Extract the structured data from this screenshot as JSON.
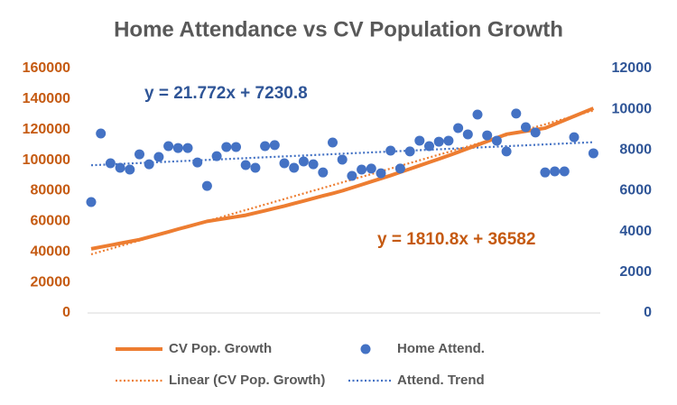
{
  "chart_data": {
    "type": "combo",
    "title": "Home Attendance vs CV Population Growth",
    "series": [
      {
        "name": "CV Pop. Growth",
        "type": "line",
        "color": "#ed7d31",
        "values": [
          42000,
          43200,
          44400,
          45600,
          46800,
          48000,
          49700,
          51400,
          53100,
          54900,
          56600,
          58300,
          60000,
          61000,
          62000,
          63000,
          64000,
          65500,
          67000,
          68500,
          70000,
          71700,
          73300,
          75000,
          76700,
          78300,
          80000,
          82000,
          84000,
          86000,
          88000,
          90000,
          92200,
          94300,
          96500,
          98700,
          100800,
          103000,
          105300,
          107700,
          110000,
          112300,
          114700,
          117000,
          118000,
          119000,
          120000,
          121000,
          123600,
          126200,
          128800,
          131400,
          134000
        ]
      },
      {
        "name": "Home Attend.",
        "type": "scatter",
        "color": "#4472c4",
        "axis": "y2",
        "values": [
          5447,
          8812,
          7350,
          7130,
          7040,
          7790,
          7300,
          7660,
          8190,
          8100,
          8100,
          7390,
          6240,
          7700,
          8150,
          8150,
          7260,
          7130,
          8190,
          8240,
          7350,
          7130,
          7440,
          7300,
          6900,
          8370,
          7530,
          6730,
          7040,
          7090,
          6860,
          7970,
          7090,
          7930,
          8460,
          8190,
          8410,
          8460,
          9080,
          8770,
          9740,
          8720,
          8460,
          7930,
          9790,
          9120,
          8860,
          6900,
          6950,
          6950,
          8630,
          null,
          7840
        ]
      }
    ],
    "trendlines": [
      {
        "name": "Linear (CV Pop. Growth)",
        "color": "#ed7d31",
        "slope": 1810.8,
        "intercept": 36582,
        "label": "y = 1810.8x + 36582"
      },
      {
        "name": "Attend. Trend",
        "color": "#4472c4",
        "axis": "y2",
        "slope": 21.772,
        "intercept": 7230.8,
        "label": "y = 21.772x + 7230.8"
      }
    ],
    "ylim": [
      0,
      160000
    ],
    "yticks": [
      0,
      20000,
      40000,
      60000,
      80000,
      100000,
      120000,
      140000,
      160000
    ],
    "ycolor": "#c55a11",
    "y2lim": [
      0,
      12000
    ],
    "y2ticks": [
      0,
      2000,
      4000,
      6000,
      8000,
      10000,
      12000
    ],
    "y2color": "#2f5597",
    "grid": false
  }
}
